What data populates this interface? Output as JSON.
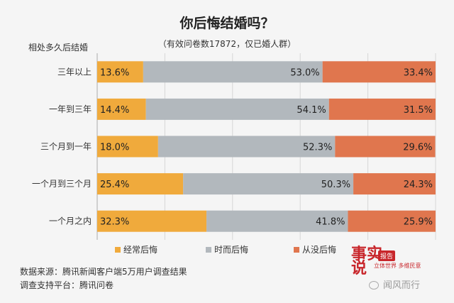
{
  "chart_data": {
    "type": "bar",
    "stacked": true,
    "orientation": "horizontal",
    "title": "你后悔结婚吗？",
    "subtitle": "（有效问卷数17872，仅已婚人群）",
    "ylabel": "相处多久后结婚",
    "categories": [
      "三年以上",
      "一年到三年",
      "三个月到一年",
      "一个月到三个月",
      "一个月之内"
    ],
    "series": [
      {
        "name": "经常后悔",
        "color": "#f0aa3c",
        "values": [
          13.6,
          14.4,
          18.0,
          25.4,
          32.3
        ],
        "labels": [
          "13.6%",
          "14.4%",
          "18.0%",
          "25.4%",
          "32.3%"
        ]
      },
      {
        "name": "时而后悔",
        "color": "#b2b8bd",
        "values": [
          53.0,
          54.1,
          52.3,
          50.3,
          41.8
        ],
        "labels": [
          "53.0%",
          "54.1%",
          "52.3%",
          "50.3%",
          "41.8%"
        ]
      },
      {
        "name": "从没后悔",
        "color": "#e0764e",
        "values": [
          33.4,
          31.5,
          29.6,
          24.3,
          25.9
        ],
        "labels": [
          "33.4%",
          "31.5%",
          "29.6%",
          "24.3%",
          "25.9%"
        ]
      }
    ],
    "xlim": [
      0,
      100
    ],
    "grid": true,
    "legend": "bottom"
  },
  "footer": {
    "source": "数据来源：腾讯新闻客户端5万用户调查结果",
    "platform": "调查支持平台：腾讯问卷"
  },
  "watermark": {
    "logo_text": "事实说",
    "badge": "报告",
    "slogan": "立体世界 多维民意",
    "account": "闻风而行",
    "icon": "wechat-icon"
  }
}
